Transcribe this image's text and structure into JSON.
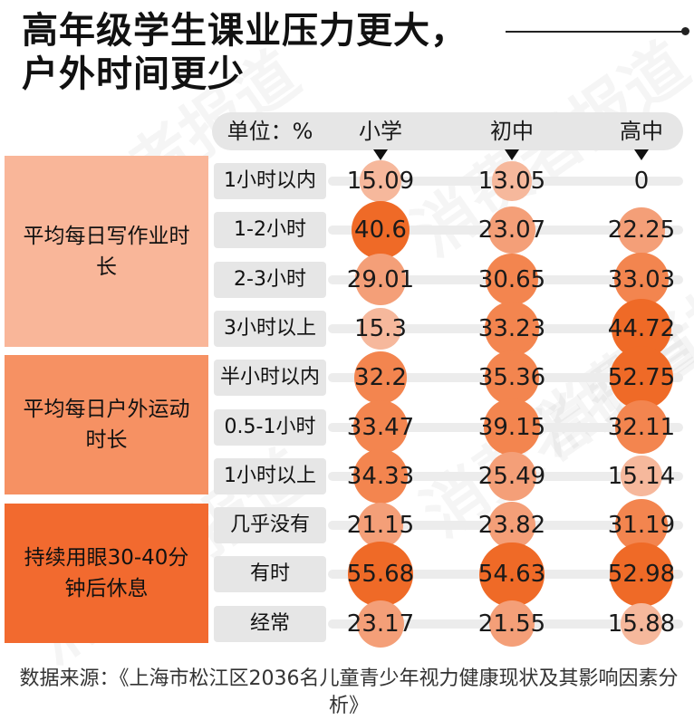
{
  "title": "高年级学生课业压力更大，户外时间更少",
  "watermark": "消费者报道",
  "chart_data": {
    "type": "table",
    "unit_label": "单位：%",
    "columns": [
      "小学",
      "初中",
      "高中"
    ],
    "groups": [
      {
        "name": "平均每日写作业时长",
        "color": "#f9b699",
        "rows": [
          {
            "label": "1小时以内",
            "values": [
              15.09,
              13.05,
              0
            ]
          },
          {
            "label": "1-2小时",
            "values": [
              40.6,
              23.07,
              22.25
            ]
          },
          {
            "label": "2-3小时",
            "values": [
              29.01,
              30.65,
              33.03
            ]
          },
          {
            "label": "3小时以上",
            "values": [
              15.3,
              33.23,
              44.72
            ]
          }
        ]
      },
      {
        "name": "平均每日户外运动时长",
        "color": "#f69163",
        "rows": [
          {
            "label": "半小时以内",
            "values": [
              32.2,
              35.36,
              52.75
            ]
          },
          {
            "label": "0.5-1小时",
            "values": [
              33.47,
              39.15,
              32.11
            ]
          },
          {
            "label": "1小时以上",
            "values": [
              34.33,
              25.49,
              15.14
            ]
          }
        ]
      },
      {
        "name": "持续用眼30-40分钟后休息",
        "color": "#f26a2f",
        "rows": [
          {
            "label": "几乎没有",
            "values": [
              21.15,
              23.82,
              31.19
            ]
          },
          {
            "label": "有时",
            "values": [
              55.68,
              54.63,
              52.98
            ]
          },
          {
            "label": "经常",
            "values": [
              23.17,
              21.55,
              15.88
            ]
          }
        ]
      }
    ]
  },
  "source": "数据来源：《上海市松江区2036名儿童青少年视力健康现状及其影响因素分析》"
}
